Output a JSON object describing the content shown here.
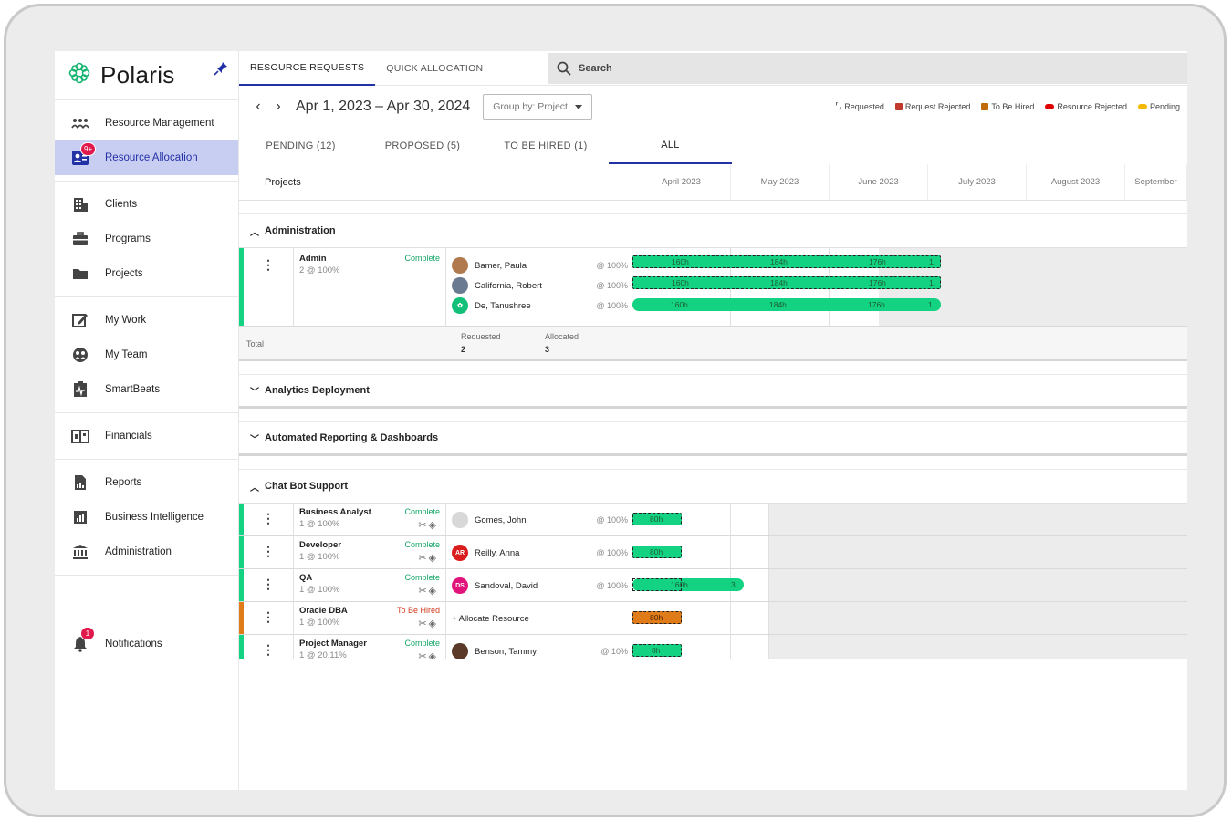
{
  "app": {
    "name": "Polaris"
  },
  "sidebar": {
    "items": [
      {
        "label": "Resource Management"
      },
      {
        "label": "Resource Allocation",
        "badge": "9+"
      },
      {
        "label": "Clients"
      },
      {
        "label": "Programs"
      },
      {
        "label": "Projects"
      },
      {
        "label": "My Work"
      },
      {
        "label": "My Team"
      },
      {
        "label": "SmartBeats"
      },
      {
        "label": "Financials"
      },
      {
        "label": "Reports"
      },
      {
        "label": "Business Intelligence"
      },
      {
        "label": "Administration"
      }
    ],
    "notifications": {
      "label": "Notifications",
      "badge": "1"
    }
  },
  "topbar": {
    "tabs": [
      "RESOURCE REQUESTS",
      "QUICK ALLOCATION"
    ],
    "search_placeholder": "Search"
  },
  "toolbar": {
    "date_range": "Apr 1, 2023 – Apr 30, 2024",
    "group_by": "Group by: Project",
    "legend": [
      {
        "label": "Requested",
        "color": "#555555"
      },
      {
        "label": "Request Rejected",
        "color": "#c0392b"
      },
      {
        "label": "To Be Hired",
        "color": "#c26a0a"
      },
      {
        "label": "Resource Rejected",
        "color": "#e00000"
      },
      {
        "label": "Pending",
        "color": "#f5b800"
      }
    ]
  },
  "status_tabs": [
    "PENDING (12)",
    "PROPOSED (5)",
    "TO BE HIRED (1)",
    "ALL"
  ],
  "grid": {
    "projects_header": "Projects",
    "months": [
      "April 2023",
      "May 2023",
      "June 2023",
      "July 2023",
      "August 2023",
      "September"
    ]
  },
  "groups": {
    "administration": {
      "name": "Administration",
      "role": {
        "name": "Admin",
        "sub": "2 @ 100%",
        "status": "Complete"
      },
      "people": [
        {
          "name": "Bamer, Paula",
          "alloc": "@ 100%"
        },
        {
          "name": "California, Robert",
          "alloc": "@ 100%"
        },
        {
          "name": "De, Tanushree",
          "alloc": "@ 100%"
        }
      ],
      "bar_labels": [
        "160h",
        "184h",
        "176h",
        "1."
      ],
      "total": {
        "label": "Total",
        "requested_label": "Requested",
        "requested": "2",
        "allocated_label": "Allocated",
        "allocated": "3"
      }
    },
    "analytics": {
      "name": "Analytics Deployment"
    },
    "automated": {
      "name": "Automated Reporting & Dashboards"
    },
    "chatbot": {
      "name": "Chat Bot Support",
      "rows": [
        {
          "role": "Business Analyst",
          "sub": "1 @ 100%",
          "status": "Complete",
          "person": "Gomes, John",
          "initials": "",
          "alloc": "@ 100%",
          "bar": "80h",
          "bar2": ""
        },
        {
          "role": "Developer",
          "sub": "1 @ 100%",
          "status": "Complete",
          "person": "Reilly, Anna",
          "initials": "AR",
          "alloc": "@ 100%",
          "bar": "80h",
          "bar2": ""
        },
        {
          "role": "QA",
          "sub": "1 @ 100%",
          "status": "Complete",
          "person": "Sandoval, David",
          "initials": "DS",
          "alloc": "@ 100%",
          "bar": "160h",
          "bar2": "3."
        },
        {
          "role": "Oracle DBA",
          "sub": "1 @ 100%",
          "status": "To Be Hired",
          "person": "+ Allocate Resource",
          "initials": "",
          "alloc": "",
          "bar": "80h",
          "bar2": ""
        },
        {
          "role": "Project Manager",
          "sub": "1 @ 20.11%",
          "status": "Complete",
          "person": "Benson, Tammy",
          "initials": "",
          "alloc": "@ 10%",
          "bar": "8h",
          "bar2": ""
        }
      ]
    }
  },
  "colors": {
    "accent": "#2331a6",
    "green": "#13d281",
    "orange": "#e07b1a",
    "badge": "#e1184b"
  }
}
